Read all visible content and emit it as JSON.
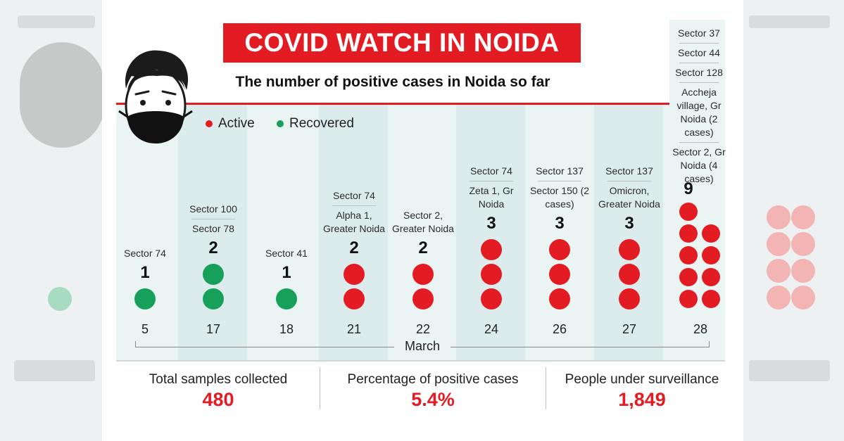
{
  "title": "COVID WATCH IN NOIDA",
  "subtitle": "The number of positive cases in Noida so far",
  "legend": {
    "active": "Active",
    "recovered": "Recovered"
  },
  "colors": {
    "active": "#e31b23",
    "recovered": "#16a05a",
    "accent": "#e31b23"
  },
  "icon": "masked-face-icon",
  "month_label": "March",
  "chart_data": {
    "type": "dot-timeline",
    "title": "COVID WATCH IN NOIDA",
    "subtitle": "The number of positive cases in Noida so far",
    "xlabel": "March",
    "series_names": [
      "Active",
      "Recovered"
    ],
    "columns": [
      {
        "date": "5",
        "count": "1",
        "active": 0,
        "recovered": 1,
        "locations": [
          "Sector 74"
        ]
      },
      {
        "date": "17",
        "count": "2",
        "active": 0,
        "recovered": 2,
        "locations": [
          "Sector 100",
          "Sector 78"
        ]
      },
      {
        "date": "18",
        "count": "1",
        "active": 0,
        "recovered": 1,
        "locations": [
          "Sector 41"
        ]
      },
      {
        "date": "21",
        "count": "2",
        "active": 2,
        "recovered": 0,
        "locations": [
          "Sector 74",
          "Alpha 1, Greater Noida"
        ]
      },
      {
        "date": "22",
        "count": "2",
        "active": 2,
        "recovered": 0,
        "locations": [
          "Sector 2, Greater Noida"
        ]
      },
      {
        "date": "24",
        "count": "3",
        "active": 3,
        "recovered": 0,
        "locations": [
          "Sector 74",
          "Zeta 1, Gr Noida"
        ]
      },
      {
        "date": "26",
        "count": "3",
        "active": 3,
        "recovered": 0,
        "locations": [
          "Sector 137",
          "Sector 150 (2 cases)"
        ]
      },
      {
        "date": "27",
        "count": "3",
        "active": 3,
        "recovered": 0,
        "locations": [
          "Sector 137",
          "Omicron, Greater Noida"
        ]
      },
      {
        "date": "28",
        "count": "9",
        "active": 9,
        "recovered": 0,
        "locations": [
          "Sector 37",
          "Sector 44",
          "Sector 128",
          "Accheja village, Gr Noida (2 cases)",
          "Sector 2, Gr Noida (4 cases)"
        ]
      }
    ]
  },
  "stats": [
    {
      "label": "Total samples collected",
      "value": "480"
    },
    {
      "label": "Percentage of positive cases",
      "value": "5.4%"
    },
    {
      "label": "People under surveillance",
      "value": "1,849"
    }
  ]
}
